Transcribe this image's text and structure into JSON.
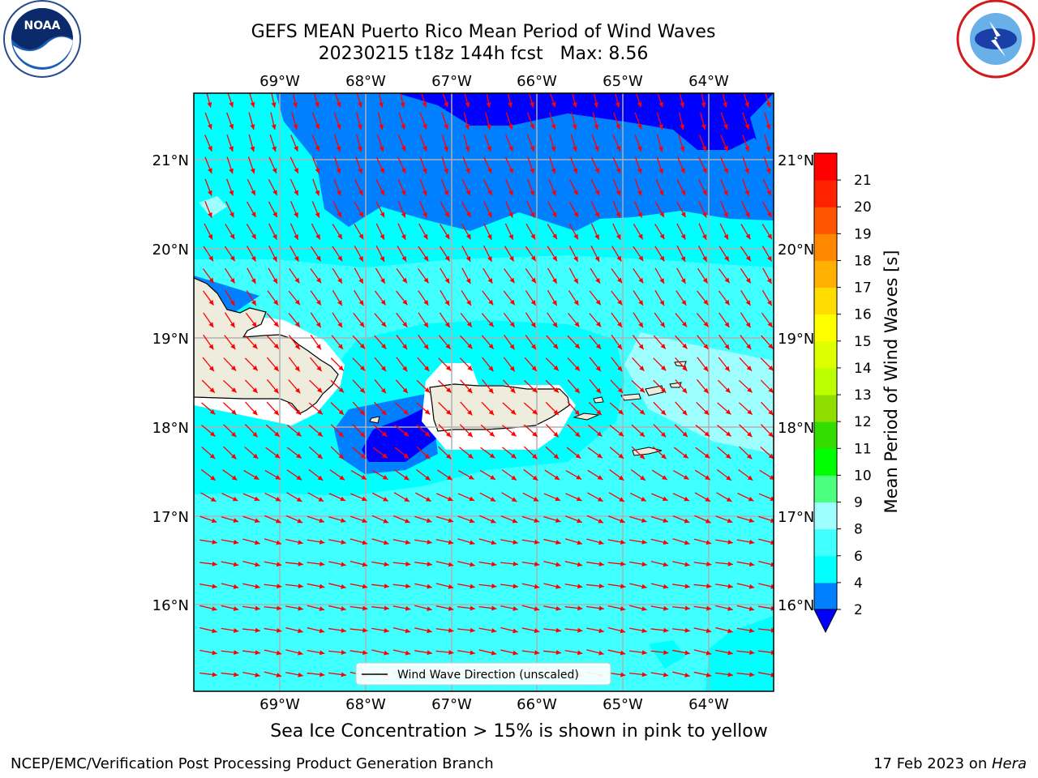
{
  "header": {
    "title_line1": "GEFS MEAN Puerto Rico Mean Period of Wind Waves",
    "title_line2": "20230215 t18z 144h fcst   Max: 8.56",
    "left_logo": "noaa-logo",
    "right_logo": "national-weather-service-logo"
  },
  "map": {
    "lon_labels": [
      "69°W",
      "68°W",
      "67°W",
      "66°W",
      "65°W",
      "64°W"
    ],
    "lat_labels": [
      "21°N",
      "20°N",
      "19°N",
      "18°N",
      "17°N",
      "16°N"
    ],
    "legend_label": "Wind Wave Direction (unscaled)",
    "arrow_color": "#ff0000",
    "land_color": "#eeecdc",
    "grid_color": "#b0b0b0"
  },
  "colorbar": {
    "title": "Mean Period of Wind Waves [s]",
    "ticks": [
      "2",
      "4",
      "6",
      "8",
      "9",
      "10",
      "11",
      "12",
      "13",
      "14",
      "15",
      "16",
      "17",
      "18",
      "19",
      "20",
      "21"
    ],
    "under_color": "#0000ff",
    "colors": [
      "#0080ff",
      "#00ffff",
      "#40ffff",
      "#9fffff",
      "#4dff7f",
      "#00ff00",
      "#33dd00",
      "#90dd00",
      "#bbff00",
      "#ddff00",
      "#ffff00",
      "#ffdd00",
      "#ffb000",
      "#ff8800",
      "#ff5500",
      "#ff2200",
      "#ff0000"
    ]
  },
  "subtitle": "Sea Ice Concentration > 15% is shown in pink to yellow",
  "footer": {
    "left": "NCEP/EMC/Verification Post Processing Product Generation Branch",
    "date": "17 Feb 2023 on ",
    "machine": "Hera"
  }
}
